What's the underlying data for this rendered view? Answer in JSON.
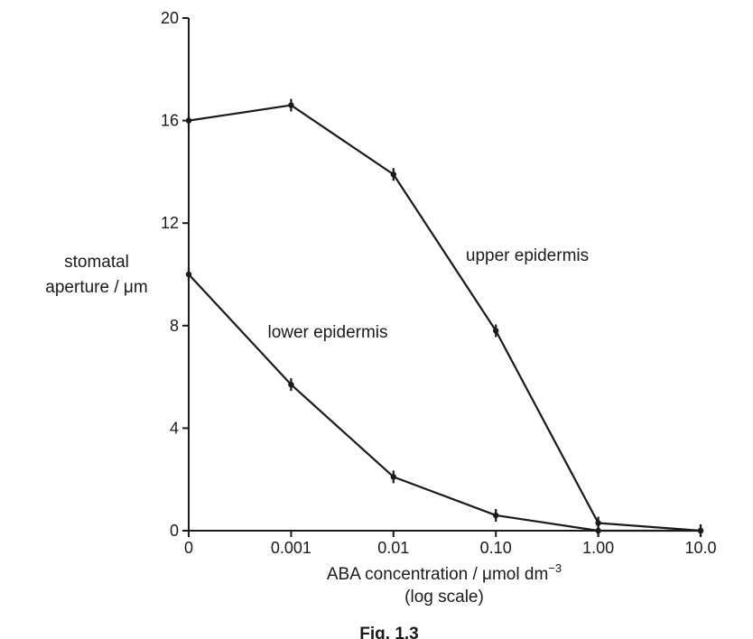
{
  "chart_data": {
    "type": "line",
    "x_scale": "log",
    "categories": [
      "0",
      "0.001",
      "0.01",
      "0.10",
      "1.00",
      "10.0"
    ],
    "ylim": [
      0,
      20
    ],
    "yticks": [
      "0",
      "4",
      "8",
      "12",
      "16",
      "20"
    ],
    "ylabel_line1": "stomatal",
    "ylabel_line2": "aperture / μm",
    "xlabel_main": "ABA concentration / μmol dm",
    "xlabel_sup": "−3",
    "xlabel_note": "(log scale)",
    "grid": false,
    "series": [
      {
        "name": "upper epidermis",
        "values": [
          16.0,
          16.6,
          13.9,
          7.8,
          0.3,
          0.0
        ]
      },
      {
        "name": "lower epidermis",
        "values": [
          10.0,
          5.7,
          2.1,
          0.6,
          0.0,
          0.0
        ]
      }
    ],
    "caption": "Fig. 1.3"
  }
}
